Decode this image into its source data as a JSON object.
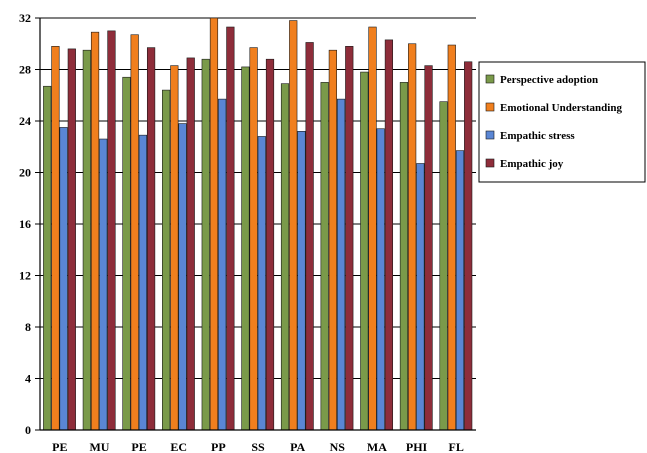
{
  "chart_data": {
    "type": "bar",
    "categories": [
      "PE",
      "MU",
      "PE",
      "EC",
      "PP",
      "SS",
      "PA",
      "NS",
      "MA",
      "PHI",
      "FL"
    ],
    "series": [
      {
        "name": "Perspective adoption",
        "color": "#7A9A4A",
        "values": [
          26.7,
          29.5,
          27.4,
          26.4,
          28.8,
          28.2,
          26.9,
          27.0,
          27.8,
          27.0,
          25.5
        ]
      },
      {
        "name": "Emotional Understanding",
        "color": "#F07F1E",
        "values": [
          29.8,
          30.9,
          30.7,
          28.3,
          32.0,
          29.7,
          31.8,
          29.5,
          31.3,
          30.0,
          29.9
        ]
      },
      {
        "name": "Empathic stress",
        "color": "#5A86D4",
        "values": [
          23.5,
          22.6,
          22.9,
          23.8,
          25.7,
          22.8,
          23.2,
          25.7,
          23.4,
          20.7,
          21.7
        ]
      },
      {
        "name": "Empathic joy",
        "color": "#8E2D3A",
        "values": [
          29.6,
          31.0,
          29.7,
          28.9,
          31.3,
          28.8,
          30.1,
          29.8,
          30.3,
          28.3,
          28.6
        ]
      }
    ],
    "yticks": [
      "0",
      "4",
      "8",
      "12",
      "16",
      "20",
      "24",
      "28",
      "32"
    ],
    "ylim": [
      0,
      32
    ],
    "grid": true,
    "legend_position": "right"
  }
}
